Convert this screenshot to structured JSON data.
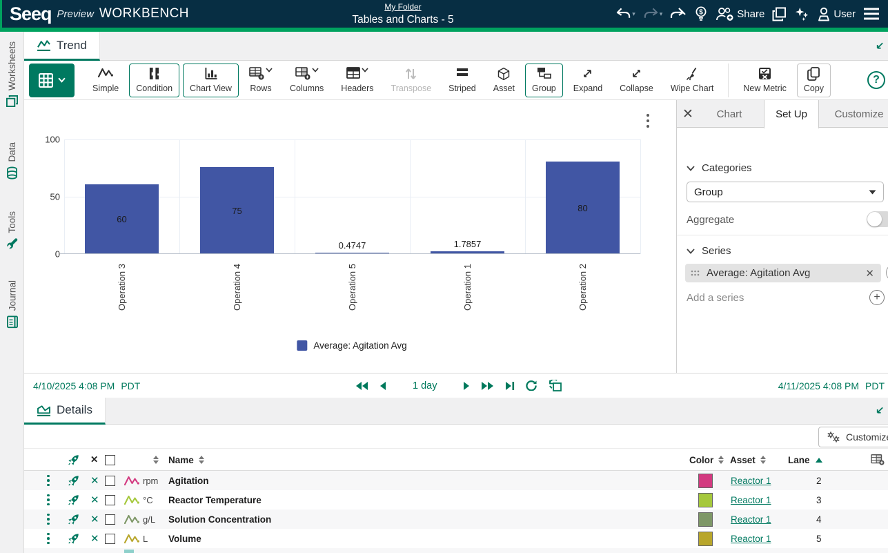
{
  "header": {
    "brand": "Seeq",
    "preview": "Preview",
    "product": "WORKBENCH",
    "breadcrumb": "My Folder",
    "title": "Tables and Charts - 5",
    "share_label": "Share",
    "user_label": "User",
    "icons": [
      "undo-icon",
      "redo-icon",
      "forward-icon",
      "pricing-bulb-icon",
      "add-user-icon",
      "duplicate-icon",
      "ai-sparkles-icon",
      "user-icon",
      "menu-icon"
    ],
    "colors": {
      "bar": "#072e43",
      "accent": "#00a25f"
    }
  },
  "sidebar": {
    "items": [
      {
        "label": "Worksheets",
        "icon": "worksheets-icon"
      },
      {
        "label": "Data",
        "icon": "database-icon"
      },
      {
        "label": "Tools",
        "icon": "wrench-icon"
      },
      {
        "label": "Journal",
        "icon": "journal-icon"
      }
    ]
  },
  "trend": {
    "tab_label": "Trend"
  },
  "toolbar": {
    "buttons": [
      {
        "label": "Simple",
        "icon": "signal-icon",
        "state": "normal"
      },
      {
        "label": "Condition",
        "icon": "condition-icon",
        "state": "outlined"
      },
      {
        "label": "Chart View",
        "icon": "bar-chart-icon",
        "state": "outlined"
      },
      {
        "label": "Rows",
        "icon": "table-rows-add-icon",
        "state": "normal",
        "chevron": true
      },
      {
        "label": "Columns",
        "icon": "table-columns-add-icon",
        "state": "normal",
        "chevron": true
      },
      {
        "label": "Headers",
        "icon": "table-headers-icon",
        "state": "normal",
        "chevron": true
      },
      {
        "label": "Transpose",
        "icon": "transpose-icon",
        "state": "disabled"
      },
      {
        "label": "Striped",
        "icon": "striped-icon",
        "state": "normal"
      },
      {
        "label": "Asset",
        "icon": "cube-icon",
        "state": "normal"
      },
      {
        "label": "Group",
        "icon": "group-icon",
        "state": "outlined"
      },
      {
        "label": "Expand",
        "icon": "expand-icon",
        "state": "normal"
      },
      {
        "label": "Collapse",
        "icon": "collapse-icon",
        "state": "normal"
      },
      {
        "label": "Wipe Chart",
        "icon": "wipe-chart-icon",
        "state": "normal"
      },
      {
        "label": "New Metric",
        "icon": "new-metric-icon",
        "state": "normal",
        "sep": true
      },
      {
        "label": "Copy",
        "icon": "copy-icon",
        "state": "outlined-gray"
      }
    ]
  },
  "panel": {
    "tabs": [
      {
        "label": "Chart",
        "active": false
      },
      {
        "label": "Set Up",
        "active": true
      },
      {
        "label": "Customize",
        "active": false
      }
    ],
    "categories_label": "Categories",
    "group_value": "Group",
    "aggregate_label": "Aggregate",
    "aggregate_on": false,
    "series_label": "Series",
    "series_chip": "Average: Agitation Avg",
    "add_series_label": "Add a series"
  },
  "chart_data": {
    "type": "bar",
    "categories": [
      "Operation 3",
      "Operation 4",
      "Operation 5",
      "Operation 1",
      "Operation 2"
    ],
    "values": [
      60,
      75,
      0.4747,
      1.7857,
      80
    ],
    "value_labels": [
      "60",
      "75",
      "0.4747",
      "1.7857",
      "80"
    ],
    "title": "",
    "xlabel": "",
    "ylabel": "",
    "ylim": [
      0,
      100
    ],
    "yticks": [
      0,
      50,
      100
    ],
    "grid": true,
    "legend": "Average: Agitation Avg",
    "legend_position": "bottom",
    "bar_color": "#4156a4"
  },
  "timebar": {
    "start": "4/10/2025 4:08 PM",
    "start_tz": "PDT",
    "duration": "1 day",
    "end": "4/11/2025 4:08 PM",
    "end_tz": "PDT"
  },
  "details": {
    "tab_label": "Details",
    "customize_label": "Customize",
    "columns": {
      "name": "Name",
      "color": "Color",
      "asset": "Asset",
      "lane": "Lane"
    },
    "rows": [
      {
        "unit": "rpm",
        "name": "Agitation",
        "color": "#d33a80",
        "asset": "Reactor 1",
        "lane": "2"
      },
      {
        "unit": "°C",
        "name": "Reactor Temperature",
        "color": "#a5c83c",
        "asset": "Reactor 1",
        "lane": "3"
      },
      {
        "unit": "g/L",
        "name": "Solution Concentration",
        "color": "#7e9767",
        "asset": "Reactor 1",
        "lane": "4"
      },
      {
        "unit": "L",
        "name": "Volume",
        "color": "#b8a62b",
        "asset": "Reactor 1",
        "lane": "5"
      }
    ]
  }
}
